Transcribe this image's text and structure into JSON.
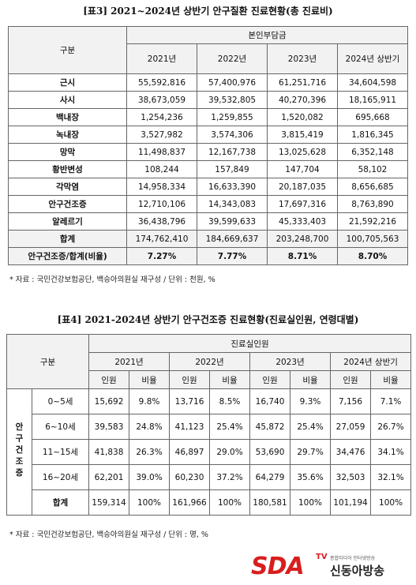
{
  "table3": {
    "title": "[표3] 2021~2024년 상반기 안구질환 진료현황(총 진료비)",
    "header": {
      "group": "구분",
      "span": "본인부담금",
      "years": [
        "2021년",
        "2022년",
        "2023년",
        "2024년 상반기"
      ]
    },
    "rows": [
      {
        "label": "근시",
        "cells": [
          "55,592,816",
          "57,400,976",
          "61,251,716",
          "34,604,598"
        ]
      },
      {
        "label": "사시",
        "cells": [
          "38,673,059",
          "39,532,805",
          "40,270,396",
          "18,165,911"
        ]
      },
      {
        "label": "백내장",
        "cells": [
          "1,254,236",
          "1,259,855",
          "1,520,082",
          "695,668"
        ]
      },
      {
        "label": "녹내장",
        "cells": [
          "3,527,982",
          "3,574,306",
          "3,815,419",
          "1,816,345"
        ]
      },
      {
        "label": "망막",
        "cells": [
          "11,498,837",
          "12,167,738",
          "13,025,628",
          "6,352,148"
        ]
      },
      {
        "label": "황반변성",
        "cells": [
          "108,244",
          "157,849",
          "147,704",
          "58,102"
        ]
      },
      {
        "label": "각막염",
        "cells": [
          "14,958,334",
          "16,633,390",
          "20,187,035",
          "8,656,685"
        ]
      },
      {
        "label": "안구건조증",
        "cells": [
          "12,710,106",
          "14,343,083",
          "17,697,316",
          "8,763,890"
        ]
      },
      {
        "label": "알레르기",
        "cells": [
          "36,438,796",
          "39,599,633",
          "45,333,403",
          "21,592,216"
        ]
      },
      {
        "label": "합계",
        "cells": [
          "174,762,410",
          "184,669,637",
          "203,248,700",
          "100,705,563"
        ]
      },
      {
        "label": "안구건조증/합계(비율)",
        "cells": [
          "7.27%",
          "7.77%",
          "8.71%",
          "8.70%"
        ]
      }
    ],
    "note": "* 자료 : 국민건강보험공단, 백승아의원실 재구성 / 단위 : 천원, %"
  },
  "table4": {
    "title": "[표4] 2021-2024년 상반기 안구건조증 진료현황(진료실인원, 연령대별)",
    "header": {
      "group": "구분",
      "span": "진료실인원",
      "years": [
        "2021년",
        "2022년",
        "2023년",
        "2024년 상반기"
      ],
      "sub": [
        "인원",
        "비율"
      ]
    },
    "row_group": "안구건조증",
    "rows": [
      {
        "label": "0~5세",
        "cells": [
          "15,692",
          "9.8%",
          "13,716",
          "8.5%",
          "16,740",
          "9.3%",
          "7,156",
          "7.1%"
        ]
      },
      {
        "label": "6~10세",
        "cells": [
          "39,583",
          "24.8%",
          "41,123",
          "25.4%",
          "45,872",
          "25.4%",
          "27,059",
          "26.7%"
        ]
      },
      {
        "label": "11~15세",
        "cells": [
          "41,838",
          "26.3%",
          "46,897",
          "29.0%",
          "53,690",
          "29.7%",
          "34,476",
          "34.1%"
        ]
      },
      {
        "label": "16~20세",
        "cells": [
          "62,201",
          "39.0%",
          "60,230",
          "37.2%",
          "64,279",
          "35.6%",
          "32,503",
          "32.1%"
        ]
      }
    ],
    "total": {
      "label": "합계",
      "cells": [
        "159,314",
        "100%",
        "161,966",
        "100%",
        "180,581",
        "100%",
        "101,194",
        "100%"
      ]
    },
    "note": "* 자료 : 국민건강보험공단, 백승아의원실 재구성 / 단위 : 명, %"
  },
  "logo": {
    "brand": "SDA",
    "tv": "TV",
    "tagline": "종합미디어 인터넷방송",
    "name": "신동아방송"
  }
}
